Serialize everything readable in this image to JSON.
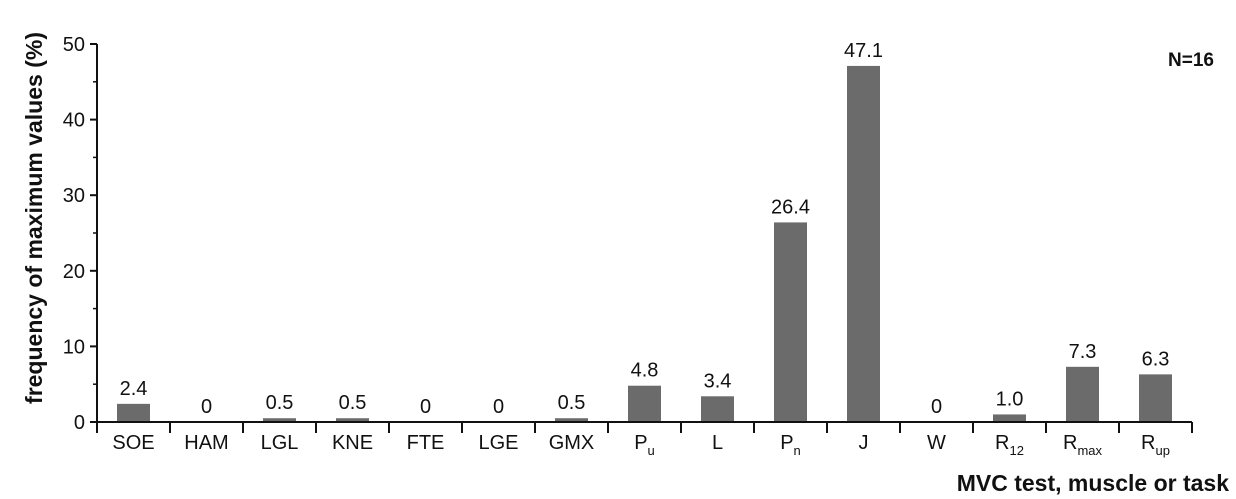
{
  "chart_data": {
    "type": "bar",
    "categories": [
      {
        "main": "SOE",
        "sub": ""
      },
      {
        "main": "HAM",
        "sub": ""
      },
      {
        "main": "LGL",
        "sub": ""
      },
      {
        "main": "KNE",
        "sub": ""
      },
      {
        "main": "FTE",
        "sub": ""
      },
      {
        "main": "LGE",
        "sub": ""
      },
      {
        "main": "GMX",
        "sub": ""
      },
      {
        "main": "P",
        "sub": "u"
      },
      {
        "main": "L",
        "sub": ""
      },
      {
        "main": "P",
        "sub": "n"
      },
      {
        "main": "J",
        "sub": ""
      },
      {
        "main": "W",
        "sub": ""
      },
      {
        "main": "R",
        "sub": "12"
      },
      {
        "main": "R",
        "sub": "max"
      },
      {
        "main": "R",
        "sub": "up"
      }
    ],
    "values": [
      2.4,
      0,
      0.5,
      0.5,
      0,
      0,
      0.5,
      4.8,
      3.4,
      26.4,
      47.1,
      0,
      1.0,
      7.3,
      6.3
    ],
    "data_labels": [
      "2.4",
      "0",
      "0.5",
      "0.5",
      "0",
      "0",
      "0.5",
      "4.8",
      "3.4",
      "26.4",
      "47.1",
      "0",
      "1.0",
      "7.3",
      "6.3"
    ],
    "xlabel": "MVC test, muscle or task",
    "ylabel": "frequency of maximum values (%)",
    "ylim": [
      0,
      50
    ],
    "yticks": [
      0,
      10,
      20,
      30,
      40,
      50
    ],
    "annotation": "N=16",
    "bar_color": "#6b6b6b",
    "grid": false,
    "legend": "none"
  }
}
